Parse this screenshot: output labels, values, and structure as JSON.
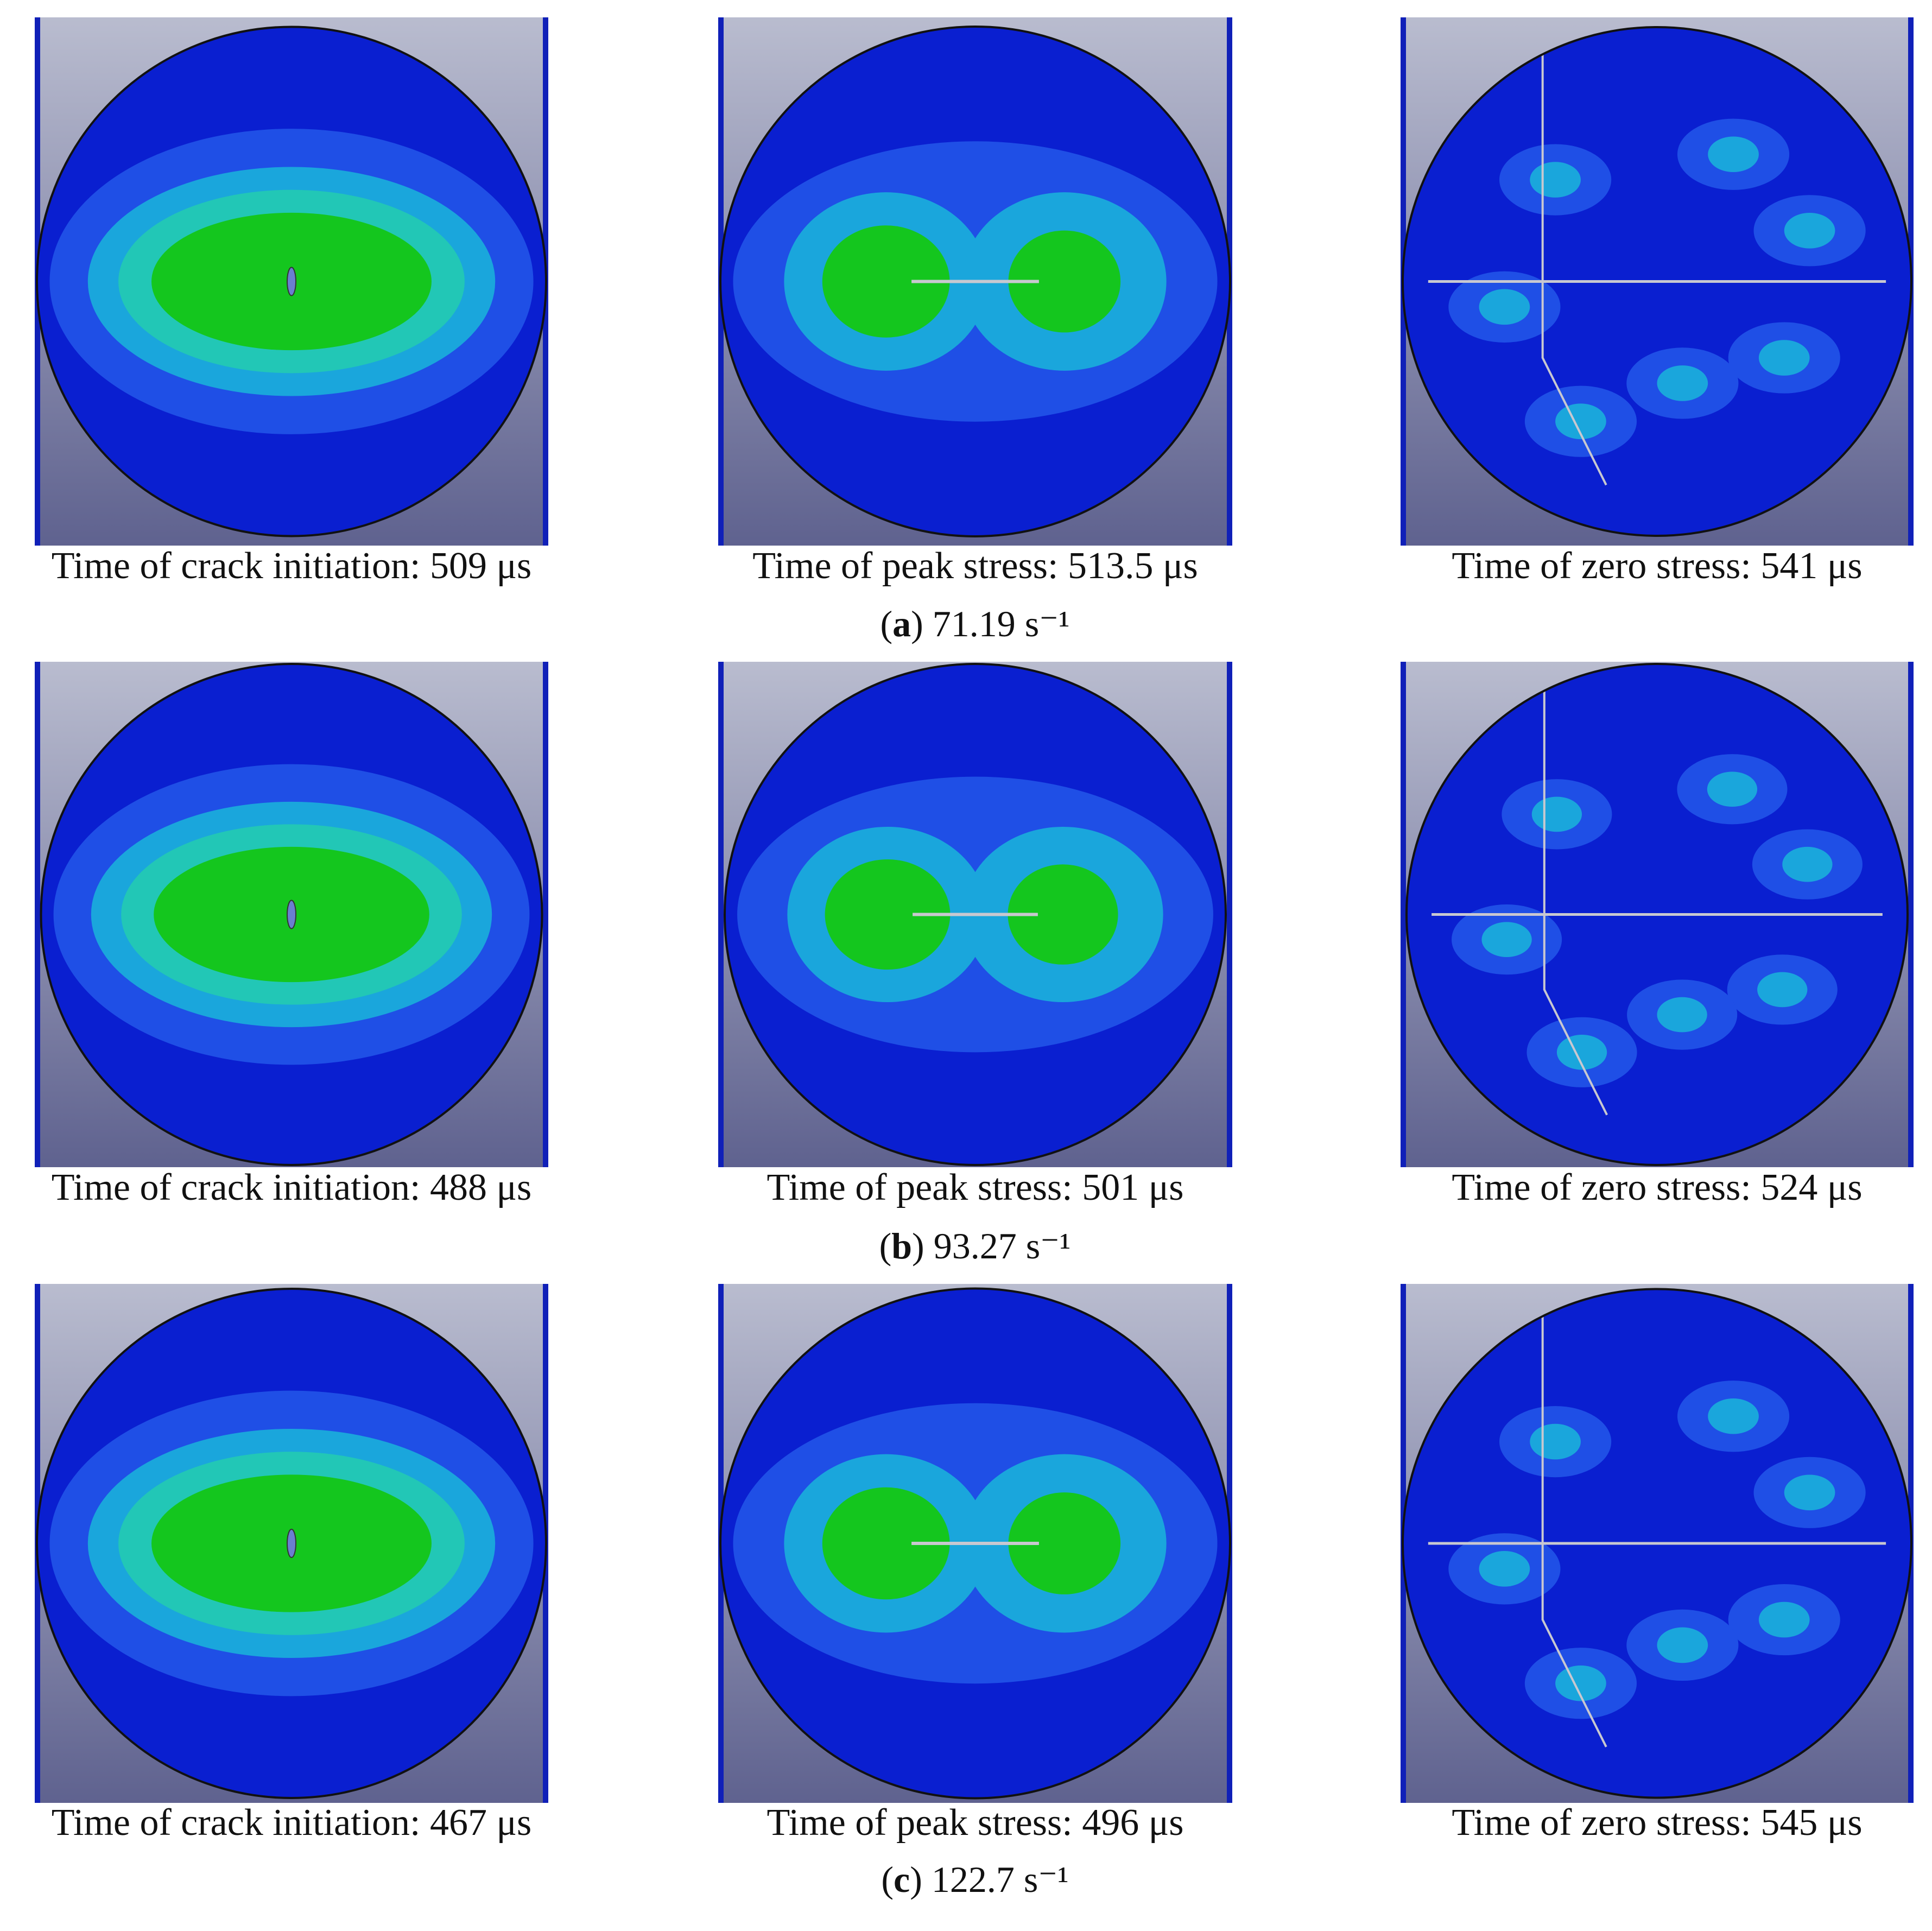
{
  "rows": [
    {
      "captions": [
        "Time of crack initiation: 509 μs",
        "Time of peak stress: 513.5 μs",
        "Time of zero stress: 541 μs"
      ],
      "label": [
        "(",
        "a",
        ") 71.19 s⁻¹"
      ]
    },
    {
      "captions": [
        "Time of crack initiation: 488 μs",
        "Time of peak stress: 501 μs",
        "Time of zero stress: 524 μs"
      ],
      "label": [
        "(",
        "b",
        ") 93.27 s⁻¹"
      ]
    },
    {
      "captions": [
        "Time of crack initiation: 467 μs",
        "Time of peak stress: 496 μs",
        "Time of zero stress: 545 μs"
      ],
      "label": [
        "(",
        "c",
        ") 122.7 s⁻¹"
      ]
    }
  ]
}
